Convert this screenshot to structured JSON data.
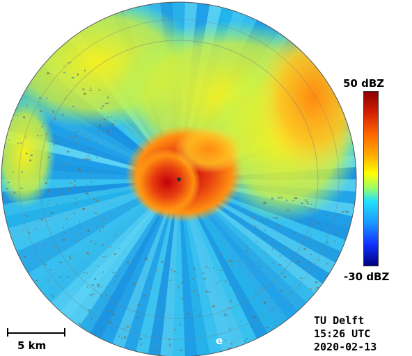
{
  "colorbar": {
    "max_label": "50 dBZ",
    "min_label": "-30 dBZ",
    "colors": [
      "#8b0000",
      "#d42000",
      "#ff6a00",
      "#ffb000",
      "#ffff00",
      "#a0ff60",
      "#20e0ff",
      "#1c9aff",
      "#1030ff",
      "#000080"
    ]
  },
  "scale_bar": {
    "label": "5 km"
  },
  "info": {
    "institution": "TU Delft",
    "time": "15:26 UTC",
    "date": "2020-02-13"
  },
  "overlay": {
    "marker": "e"
  },
  "radar": {
    "background_color": "#2eaee8",
    "ring_color": "#7a7a7a"
  }
}
